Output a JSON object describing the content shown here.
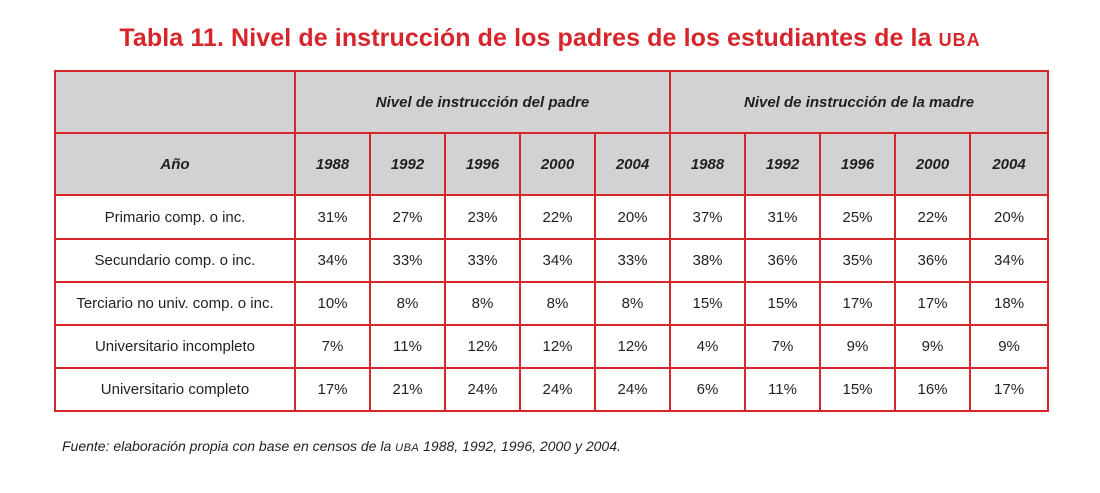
{
  "title": {
    "prefix": "Tabla 11. Nivel de instrucción de los padres de los estudiantes de la ",
    "acronym": "UBA"
  },
  "table": {
    "group_headers": [
      "Nivel de instrucción del padre",
      "Nivel de instrucción de la madre"
    ],
    "year_header": "Año",
    "years": [
      "1988",
      "1992",
      "1996",
      "2000",
      "2004"
    ],
    "rows": [
      {
        "label": "Primario comp. o inc.",
        "padre": [
          "31%",
          "27%",
          "23%",
          "22%",
          "20%"
        ],
        "madre": [
          "37%",
          "31%",
          "25%",
          "22%",
          "20%"
        ]
      },
      {
        "label": "Secundario comp. o inc.",
        "padre": [
          "34%",
          "33%",
          "33%",
          "34%",
          "33%"
        ],
        "madre": [
          "38%",
          "36%",
          "35%",
          "36%",
          "34%"
        ]
      },
      {
        "label": "Terciario no univ. comp. o inc.",
        "padre": [
          "10%",
          "8%",
          "8%",
          "8%",
          "8%"
        ],
        "madre": [
          "15%",
          "15%",
          "17%",
          "17%",
          "18%"
        ]
      },
      {
        "label": "Universitario incompleto",
        "padre": [
          "7%",
          "11%",
          "12%",
          "12%",
          "12%"
        ],
        "madre": [
          "4%",
          "7%",
          "9%",
          "9%",
          "9%"
        ]
      },
      {
        "label": "Universitario completo",
        "padre": [
          "17%",
          "21%",
          "24%",
          "24%",
          "24%"
        ],
        "madre": [
          "6%",
          "11%",
          "15%",
          "16%",
          "17%"
        ]
      }
    ]
  },
  "footnote": {
    "prefix": "Fuente: elaboración propia con base en censos de la ",
    "acronym": "UBA",
    "suffix": " 1988, 1992, 1996, 2000 y 2004."
  },
  "colors": {
    "accent": "#d6262c",
    "header_bg": "#d1d2d4",
    "text": "#231f20"
  }
}
